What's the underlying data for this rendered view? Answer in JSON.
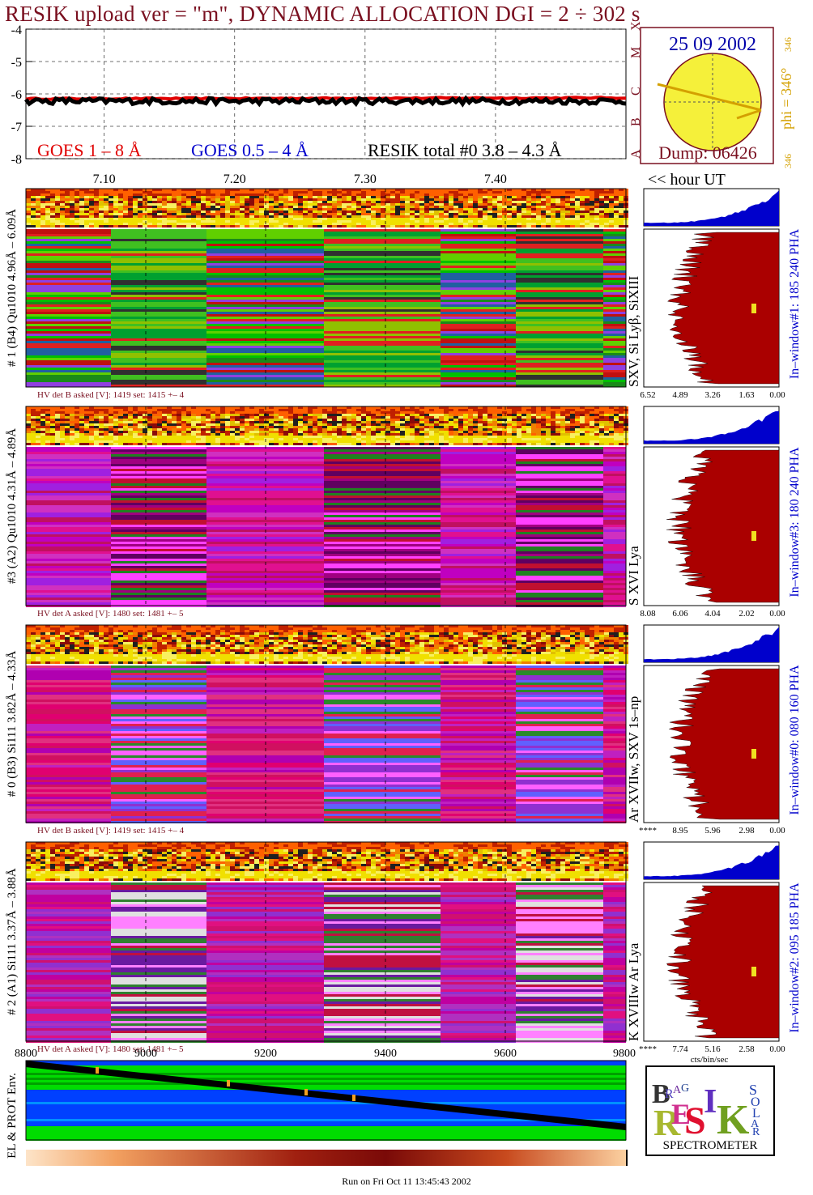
{
  "title": "RESIK upload ver = \"m\", DYNAMIC ALLOCATION  DGI =   2 ÷ 302 s",
  "colors": {
    "title": "#7a1020",
    "goes_long": "#e00000",
    "goes_short": "#0000cc",
    "resik_total": "#000000",
    "pha_hist": "#aa0000",
    "pha_top": "#0000cc",
    "date_text": "#0000aa",
    "phi_text": "#d4a000",
    "sun_fill": "#f5f03a",
    "env_green": "#00dd00",
    "env_blue": "#0040ff"
  },
  "icons": {
    "sun": "sun-disk-icon",
    "logo": "resik-logo-icon"
  },
  "sun_panel": {
    "date": "25 09 2002",
    "dump": "Dump: 06426",
    "phi": "phi = 346°",
    "phi_sup": "346",
    "phi_bottom": "346",
    "classes": [
      "X",
      "M",
      "C",
      "B",
      "A"
    ]
  },
  "chart_data": [
    {
      "type": "line",
      "panel": "goes-lightcurve",
      "ylim": [
        -8,
        -4
      ],
      "yticks": [
        "-4",
        "-5",
        "-6",
        "-7",
        "-8"
      ],
      "xlim": [
        7.04,
        7.5
      ],
      "xticks": [
        "7.10",
        "7.20",
        "7.30",
        "7.40"
      ],
      "x_caption": "<< hour UT",
      "grid": true,
      "legend": [
        {
          "label": "GOES 1 – 8 Å",
          "color": "#e00000"
        },
        {
          "label": "GOES 0.5 – 4 Å",
          "color": "#0000cc"
        },
        {
          "label": "RESIK total #0  3.8 – 4.3 Å",
          "color": "#000000"
        }
      ],
      "series": [
        {
          "name": "GOES 1 – 8 Å",
          "x": [
            7.04,
            7.5
          ],
          "values": [
            -6.15,
            -6.12
          ]
        },
        {
          "name": "RESIK total #0  3.8 – 4.3 Å",
          "x": [
            7.04,
            7.5
          ],
          "values": [
            -6.22,
            -6.22
          ]
        }
      ]
    },
    {
      "type": "heatmap",
      "panel": "spectrograms",
      "channels": [
        {
          "label": "# 1 (B4) Qu1010 4.96Å – 6.09Å",
          "line_id": "SXV, Si Lyβ, SiXIII",
          "hv": "HV det B asked [V]:  1419 set:  1415  +–    4",
          "window": "In–window#1:  185 240 PHA",
          "pha_ticks": [
            "6.52",
            "4.89",
            "3.26",
            "1.63",
            "0.00"
          ]
        },
        {
          "label": "#3 (A2) Qu1010  4.31Å – 4.89Å",
          "line_id": "S XVI Lya",
          "hv": "HV det A asked [V]:  1480 set:  1481  +–    5",
          "window": "In–window#3:  180 240 PHA",
          "pha_ticks": [
            "8.08",
            "6.06",
            "4.04",
            "2.02",
            "0.00"
          ]
        },
        {
          "label": "# 0 (B3) Si111  3.82Å – 4.33Å",
          "line_id": "Ar XVIIw, SXV 1s–np",
          "hv": "HV det B asked [V]:  1419 set:  1415  +–    4",
          "window": "In–window#0:  080 160 PHA",
          "pha_ticks": [
            "****",
            "8.95",
            "5.96",
            "2.98",
            "0.00"
          ]
        },
        {
          "label": "# 2 (A1) Si111  3.37Å –  3.88Å",
          "line_id": "K XVIIIw  Ar Lya",
          "hv": "HV det A asked [V]:  1480 set:  1481  +–    5",
          "window": "In–window#2:  095 185 PHA",
          "pha_ticks": [
            "****",
            "7.74",
            "5.16",
            "2.58",
            "0.00"
          ]
        }
      ],
      "pha_xlabel": "cts/bin/sec",
      "seconds_ticks": [
        "8800",
        "9000",
        "9200",
        "9400",
        "9600",
        "9800"
      ]
    },
    {
      "type": "area",
      "panel": "particle-environment",
      "ylabel": "EL & PROT Env."
    }
  ],
  "logo": {
    "letters": [
      "B",
      "R",
      "A",
      "G",
      "R",
      "E",
      "S",
      "I",
      "K",
      "S",
      "O",
      "L",
      "A",
      "R"
    ],
    "caption": "SPECTROMETER"
  },
  "footer": "Run on Fri Oct 11 13:45:43 2002"
}
